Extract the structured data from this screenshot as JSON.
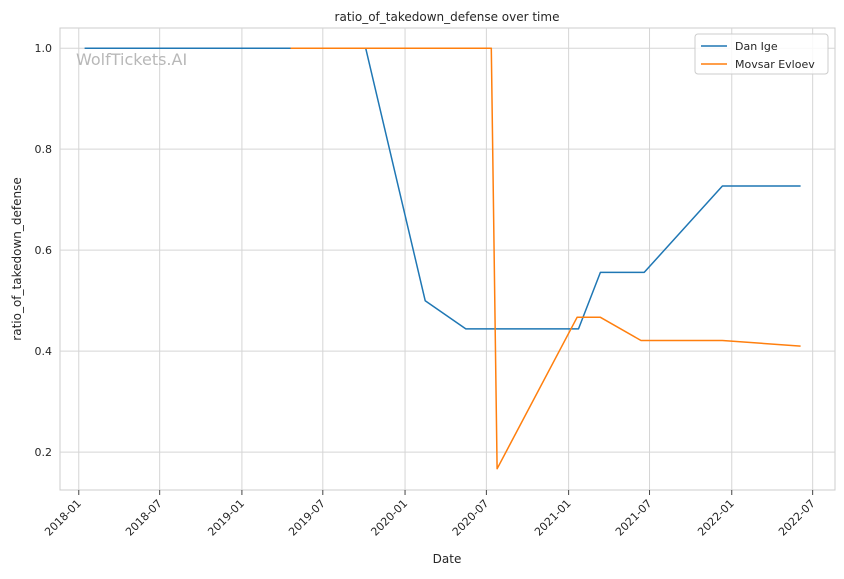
{
  "chart_data": {
    "type": "line",
    "title": "ratio_of_takedown_defense over time",
    "xlabel": "Date",
    "ylabel": "ratio_of_takedown_defense",
    "watermark": "WolfTickets.AI",
    "x_ticks": [
      "2018-01",
      "2018-07",
      "2019-01",
      "2019-07",
      "2020-01",
      "2020-07",
      "2021-01",
      "2021-07",
      "2022-01",
      "2022-07"
    ],
    "y_ticks": [
      "0.2",
      "0.4",
      "0.6",
      "0.8",
      "1.0"
    ],
    "xlim": [
      "2017-11-20",
      "2022-08-20"
    ],
    "ylim": [
      0.125,
      1.04
    ],
    "grid": true,
    "legend_position": "top-right",
    "series": [
      {
        "name": "Dan Ige",
        "color": "#1f77b4",
        "points": [
          [
            "2018-01-14",
            1.0
          ],
          [
            "2019-10-05",
            1.0
          ],
          [
            "2020-02-15",
            0.5
          ],
          [
            "2020-05-16",
            0.444
          ],
          [
            "2021-01-23",
            0.444
          ],
          [
            "2021-03-13",
            0.556
          ],
          [
            "2021-06-19",
            0.556
          ],
          [
            "2021-12-11",
            0.727
          ],
          [
            "2022-06-04",
            0.727
          ]
        ]
      },
      {
        "name": "Movsar Evloev",
        "color": "#ff7f0e",
        "points": [
          [
            "2019-04-20",
            1.0
          ],
          [
            "2020-07-12",
            1.0
          ],
          [
            "2020-07-25",
            0.167
          ],
          [
            "2021-01-20",
            0.467
          ],
          [
            "2021-03-13",
            0.467
          ],
          [
            "2021-06-12",
            0.421
          ],
          [
            "2021-12-11",
            0.421
          ],
          [
            "2022-06-04",
            0.41
          ]
        ]
      }
    ]
  }
}
